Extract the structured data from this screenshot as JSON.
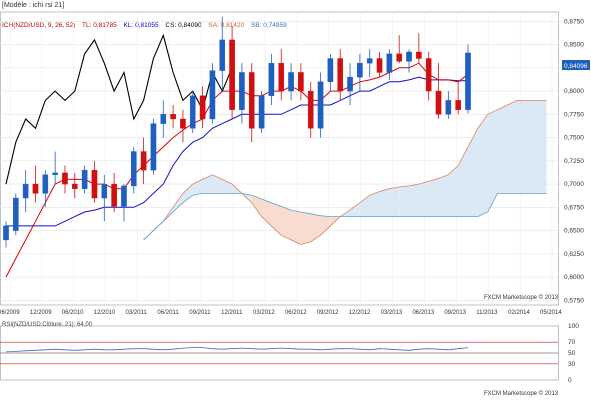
{
  "header": {
    "title": "[Modèle : ichi rsi 21]"
  },
  "legend": {
    "instrument": "ICH(NZD/USD, 9, 26, 52)",
    "items": [
      {
        "label": "TL: 0,81785",
        "color": "#c00000"
      },
      {
        "label": "KL: 0,81055",
        "color": "#0000c0"
      },
      {
        "label": "CS: 0,84090",
        "color": "#000000"
      },
      {
        "label": "SA: 0,81420",
        "color": "#d06040"
      },
      {
        "label": "SB: 0,74959",
        "color": "#3070c0"
      }
    ]
  },
  "price_badge": "0,84096",
  "watermark": "FXCM Marketscope © 2013",
  "rsi": {
    "title": "RSI(NZD/USD.Clôture, 21): 64,00",
    "ticks": [
      "100",
      "70",
      "30",
      "50",
      "0"
    ]
  },
  "colors": {
    "up": "#1f5fbf",
    "down": "#d01010",
    "tenkan": "#e00000",
    "kijun": "#1010d0",
    "chikou": "#000000",
    "span_a": "#e08060",
    "span_b": "#60a0d0"
  },
  "chart_data": {
    "type": "candlestick",
    "title": "",
    "y_ticks": [
      "0,8750",
      "0,8500",
      "0,8250",
      "0,8000",
      "0,7750",
      "0,7500",
      "0,7250",
      "0,7000",
      "0,6750",
      "0,6500",
      "0,6250",
      "0,6000",
      "0,5750"
    ],
    "ylim": [
      0.57,
      0.885
    ],
    "x_ticks": [
      "06/2009",
      "12/2009",
      "06/2010",
      "12/2010",
      "03/2011",
      "06/2011",
      "09/2011",
      "12/2011",
      "03/2012",
      "06/2012",
      "09/2012",
      "12/2012",
      "03/2013",
      "06/2013",
      "09/2013",
      "11/2013",
      "02/2014",
      "05/2014"
    ],
    "candles": [
      [
        0.64,
        0.66,
        0.632,
        0.655
      ],
      [
        0.65,
        0.69,
        0.645,
        0.685
      ],
      [
        0.685,
        0.715,
        0.67,
        0.7
      ],
      [
        0.7,
        0.72,
        0.68,
        0.69
      ],
      [
        0.69,
        0.715,
        0.675,
        0.71
      ],
      [
        0.71,
        0.735,
        0.7,
        0.712
      ],
      [
        0.712,
        0.72,
        0.69,
        0.7
      ],
      [
        0.7,
        0.712,
        0.685,
        0.695
      ],
      [
        0.695,
        0.72,
        0.69,
        0.715
      ],
      [
        0.715,
        0.725,
        0.68,
        0.685
      ],
      [
        0.685,
        0.71,
        0.66,
        0.7
      ],
      [
        0.7,
        0.712,
        0.67,
        0.676
      ],
      [
        0.676,
        0.7,
        0.66,
        0.698
      ],
      [
        0.698,
        0.74,
        0.69,
        0.735
      ],
      [
        0.735,
        0.75,
        0.7,
        0.715
      ],
      [
        0.715,
        0.77,
        0.71,
        0.765
      ],
      [
        0.765,
        0.79,
        0.75,
        0.775
      ],
      [
        0.775,
        0.785,
        0.76,
        0.77
      ],
      [
        0.77,
        0.78,
        0.745,
        0.76
      ],
      [
        0.76,
        0.8,
        0.755,
        0.795
      ],
      [
        0.795,
        0.805,
        0.76,
        0.77
      ],
      [
        0.77,
        0.83,
        0.765,
        0.822
      ],
      [
        0.822,
        0.88,
        0.8,
        0.855
      ],
      [
        0.855,
        0.87,
        0.77,
        0.78
      ],
      [
        0.78,
        0.83,
        0.765,
        0.82
      ],
      [
        0.82,
        0.83,
        0.745,
        0.76
      ],
      [
        0.76,
        0.8,
        0.755,
        0.795
      ],
      [
        0.795,
        0.84,
        0.785,
        0.83
      ],
      [
        0.83,
        0.845,
        0.79,
        0.8
      ],
      [
        0.8,
        0.83,
        0.79,
        0.82
      ],
      [
        0.82,
        0.83,
        0.79,
        0.8
      ],
      [
        0.8,
        0.81,
        0.75,
        0.76
      ],
      [
        0.76,
        0.82,
        0.75,
        0.81
      ],
      [
        0.81,
        0.84,
        0.8,
        0.835
      ],
      [
        0.835,
        0.845,
        0.79,
        0.8
      ],
      [
        0.8,
        0.83,
        0.785,
        0.815
      ],
      [
        0.815,
        0.84,
        0.8,
        0.83
      ],
      [
        0.83,
        0.845,
        0.815,
        0.835
      ],
      [
        0.835,
        0.842,
        0.815,
        0.82
      ],
      [
        0.82,
        0.845,
        0.812,
        0.84
      ],
      [
        0.84,
        0.86,
        0.83,
        0.832
      ],
      [
        0.832,
        0.845,
        0.82,
        0.842
      ],
      [
        0.842,
        0.862,
        0.83,
        0.835
      ],
      [
        0.835,
        0.842,
        0.79,
        0.8
      ],
      [
        0.8,
        0.83,
        0.77,
        0.775
      ],
      [
        0.775,
        0.8,
        0.77,
        0.79
      ],
      [
        0.79,
        0.81,
        0.775,
        0.78
      ],
      [
        0.78,
        0.85,
        0.776,
        0.841
      ]
    ],
    "tenkan": [
      0.6,
      0.62,
      0.64,
      0.66,
      0.68,
      0.7,
      0.705,
      0.705,
      0.705,
      0.7,
      0.7,
      0.695,
      0.695,
      0.71,
      0.72,
      0.73,
      0.74,
      0.75,
      0.758,
      0.765,
      0.77,
      0.79,
      0.8,
      0.8,
      0.8,
      0.795,
      0.795,
      0.8,
      0.8,
      0.805,
      0.8,
      0.79,
      0.79,
      0.8,
      0.8,
      0.805,
      0.81,
      0.812,
      0.815,
      0.82,
      0.825,
      0.825,
      0.83,
      0.818,
      0.812,
      0.812,
      0.81,
      0.818
    ],
    "kijun": [
      0.655,
      0.655,
      0.655,
      0.655,
      0.655,
      0.655,
      0.66,
      0.665,
      0.67,
      0.672,
      0.675,
      0.675,
      0.675,
      0.675,
      0.68,
      0.69,
      0.7,
      0.72,
      0.735,
      0.745,
      0.75,
      0.76,
      0.765,
      0.77,
      0.775,
      0.775,
      0.775,
      0.775,
      0.775,
      0.78,
      0.785,
      0.785,
      0.785,
      0.785,
      0.79,
      0.795,
      0.8,
      0.8,
      0.805,
      0.81,
      0.81,
      0.812,
      0.815,
      0.812,
      0.812,
      0.812,
      0.811,
      0.811
    ],
    "chikou": [
      0.7,
      0.745,
      0.77,
      0.76,
      0.79,
      0.8,
      0.79,
      0.8,
      0.84,
      0.855,
      0.83,
      0.8,
      0.82,
      0.77,
      0.79,
      0.835,
      0.86,
      0.82,
      0.79,
      0.8,
      0.78,
      0.82,
      0.8,
      0.825
    ],
    "span_a": [
      0.64,
      0.65,
      0.66,
      0.675,
      0.69,
      0.7,
      0.705,
      0.71,
      0.705,
      0.7,
      0.69,
      0.68,
      0.665,
      0.655,
      0.645,
      0.64,
      0.635,
      0.638,
      0.645,
      0.655,
      0.665,
      0.672,
      0.68,
      0.688,
      0.692,
      0.695,
      0.697,
      0.698,
      0.7,
      0.703,
      0.706,
      0.71,
      0.72,
      0.74,
      0.76,
      0.775,
      0.78,
      0.785,
      0.79,
      0.79,
      0.79,
      0.79
    ],
    "span_b": [
      0.64,
      0.65,
      0.66,
      0.67,
      0.68,
      0.688,
      0.69,
      0.69,
      0.69,
      0.69,
      0.69,
      0.688,
      0.684,
      0.68,
      0.676,
      0.672,
      0.67,
      0.668,
      0.666,
      0.665,
      0.665,
      0.665,
      0.665,
      0.665,
      0.665,
      0.665,
      0.665,
      0.665,
      0.665,
      0.665,
      0.665,
      0.665,
      0.665,
      0.665,
      0.665,
      0.67,
      0.69,
      0.69,
      0.69,
      0.69,
      0.69,
      0.69
    ],
    "rsi_values": [
      52,
      53,
      54,
      55,
      56,
      57,
      56,
      55,
      56,
      57,
      56,
      56,
      57,
      58,
      58,
      57,
      56,
      57,
      59,
      60,
      60,
      58,
      57,
      58,
      59,
      58,
      57,
      58,
      59,
      58,
      57,
      57,
      56,
      57,
      58,
      58,
      57,
      56,
      58,
      57,
      56,
      55,
      57,
      58,
      57,
      56,
      58,
      60
    ]
  }
}
